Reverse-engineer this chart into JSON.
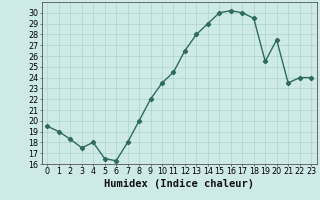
{
  "x": [
    0,
    1,
    2,
    3,
    4,
    5,
    6,
    7,
    8,
    9,
    10,
    11,
    12,
    13,
    14,
    15,
    16,
    17,
    18,
    19,
    20,
    21,
    22,
    23
  ],
  "y": [
    19.5,
    19.0,
    18.3,
    17.5,
    18.0,
    16.5,
    16.3,
    18.0,
    20.0,
    22.0,
    23.5,
    24.5,
    26.5,
    28.0,
    29.0,
    30.0,
    30.2,
    30.0,
    29.5,
    25.5,
    27.5,
    23.5,
    24.0,
    24.0
  ],
  "line_color": "#2e6b5e",
  "bg_color": "#ceeae7",
  "grid_color": "#aed4d0",
  "xlabel": "Humidex (Indice chaleur)",
  "ylim": [
    16,
    31
  ],
  "xlim": [
    -0.5,
    23.5
  ],
  "yticks": [
    16,
    17,
    18,
    19,
    20,
    21,
    22,
    23,
    24,
    25,
    26,
    27,
    28,
    29,
    30
  ],
  "xticks": [
    0,
    1,
    2,
    3,
    4,
    5,
    6,
    7,
    8,
    9,
    10,
    11,
    12,
    13,
    14,
    15,
    16,
    17,
    18,
    19,
    20,
    21,
    22,
    23
  ],
  "marker": "D",
  "markersize": 2.2,
  "linewidth": 1.0,
  "xlabel_fontsize": 7.5,
  "tick_fontsize": 5.8
}
